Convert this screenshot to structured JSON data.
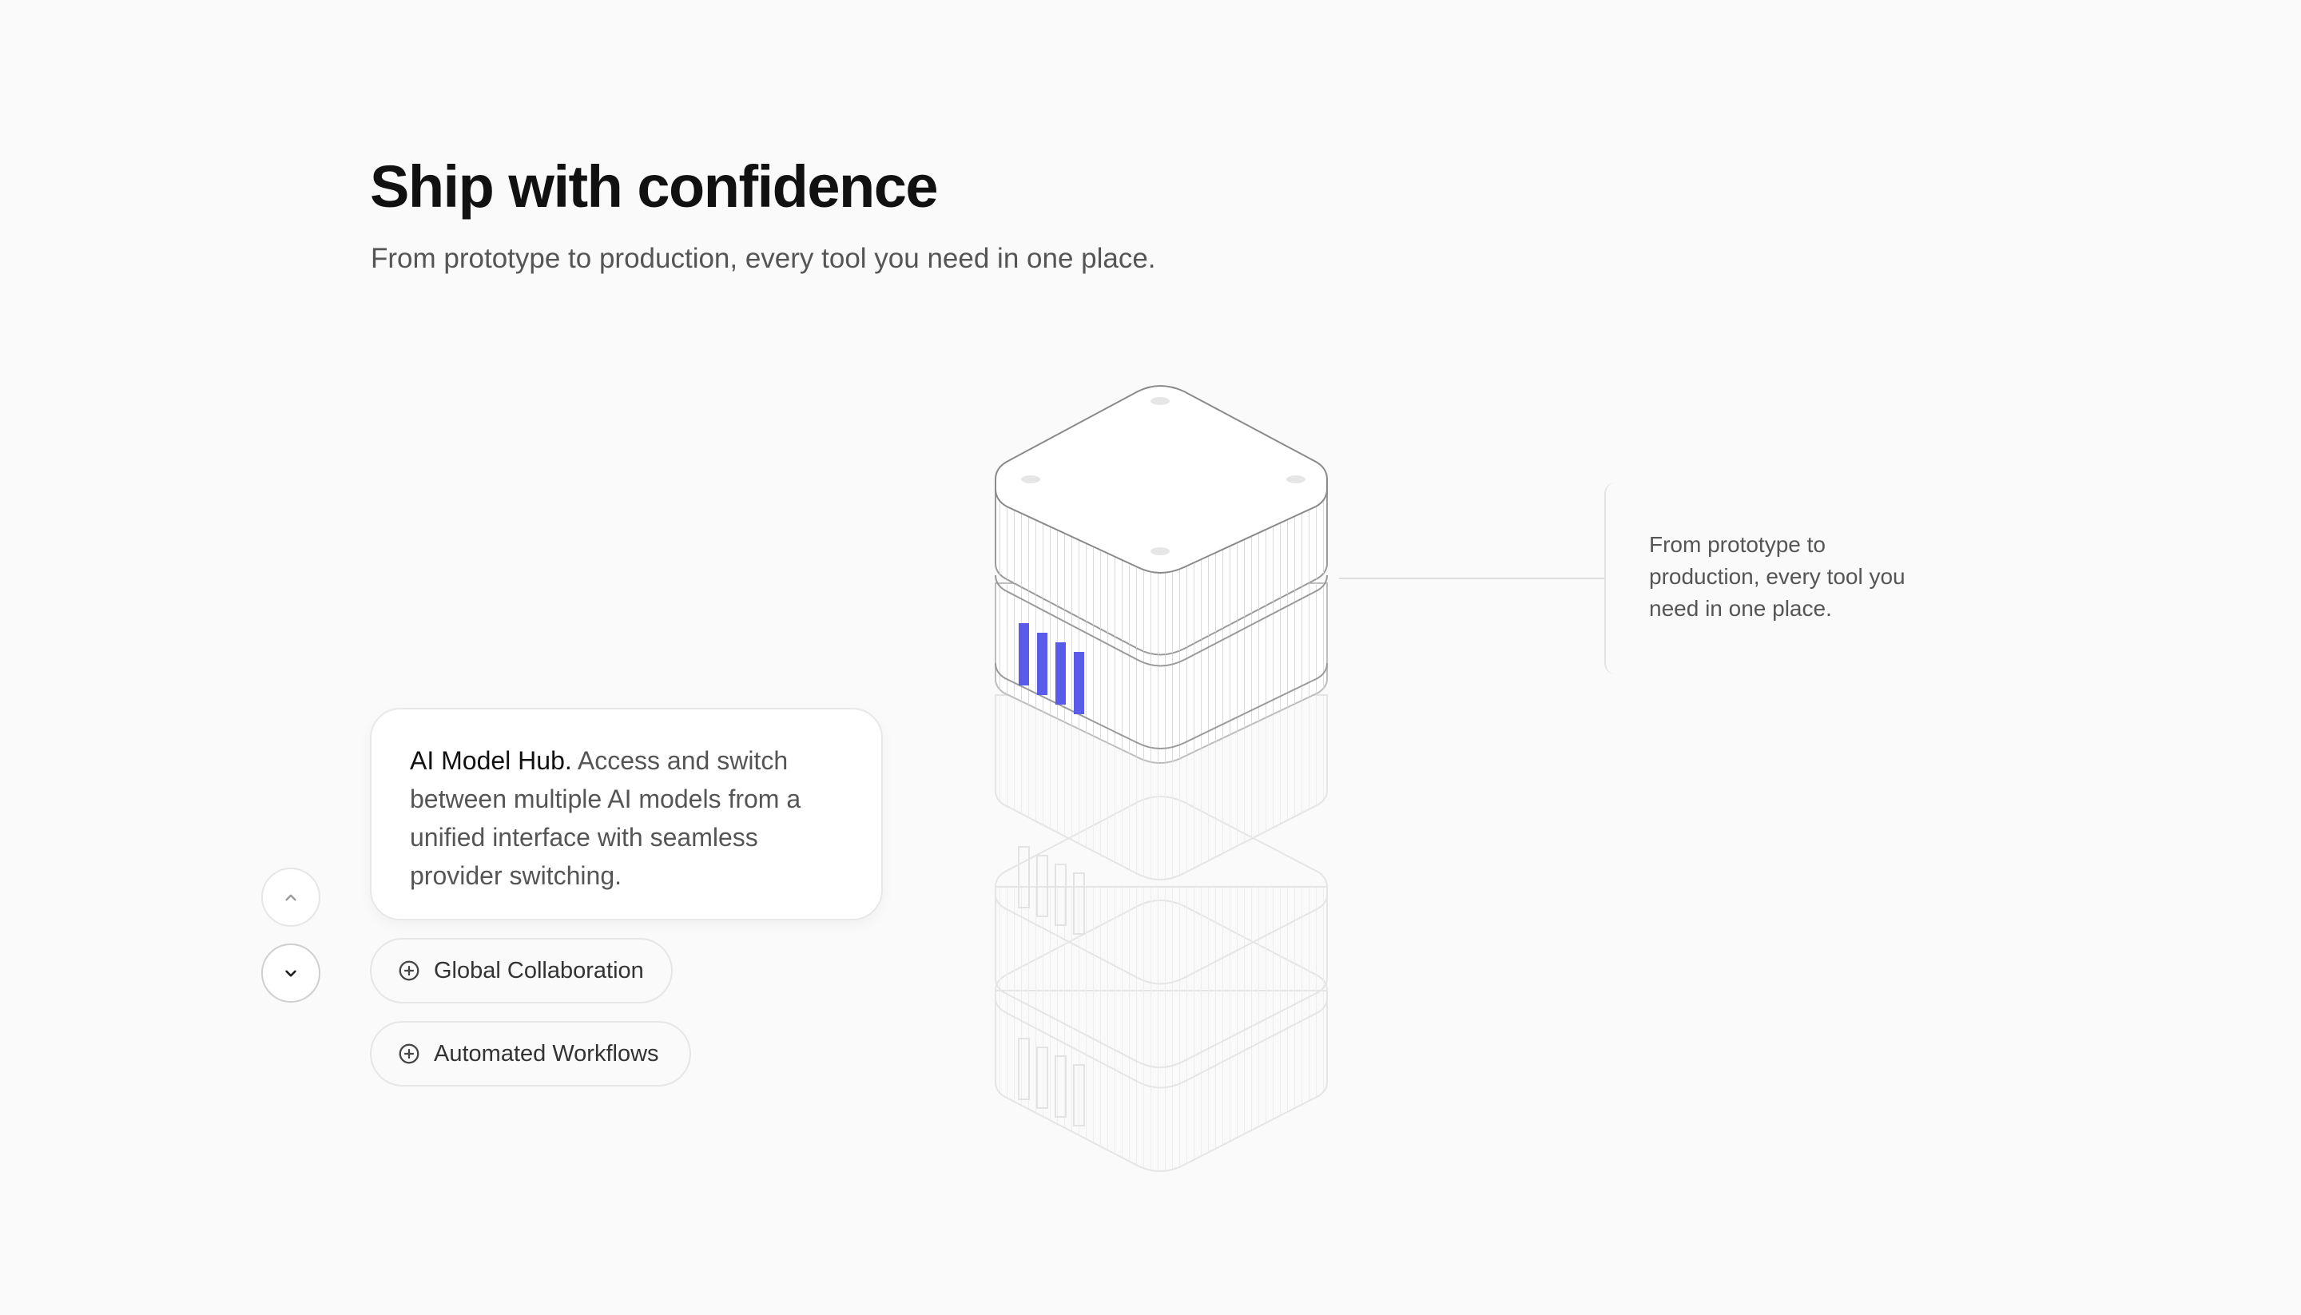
{
  "header": {
    "title": "Ship with confidence",
    "subtitle": "From prototype to production, every tool you need in one place."
  },
  "side_note": {
    "text": "From prototype to production, every tool you need in one place."
  },
  "navigation": {
    "up_icon": "chevron-up-icon",
    "down_icon": "chevron-down-icon"
  },
  "active_feature": {
    "title": "AI Model Hub.",
    "description": " Access and switch between multiple AI models from a unified interface with seamless provider switching."
  },
  "features": [
    {
      "label": "Global Collaboration",
      "icon": "plus-circle-icon"
    },
    {
      "label": "Automated Workflows",
      "icon": "plus-circle-icon"
    }
  ],
  "colors": {
    "accent": "#5b5bea",
    "background": "#fafafa",
    "text_primary": "#111111",
    "text_secondary": "#555555"
  },
  "illustration": {
    "name": "stacked-server-illustration",
    "active_layer": 1,
    "layer_count": 4
  }
}
